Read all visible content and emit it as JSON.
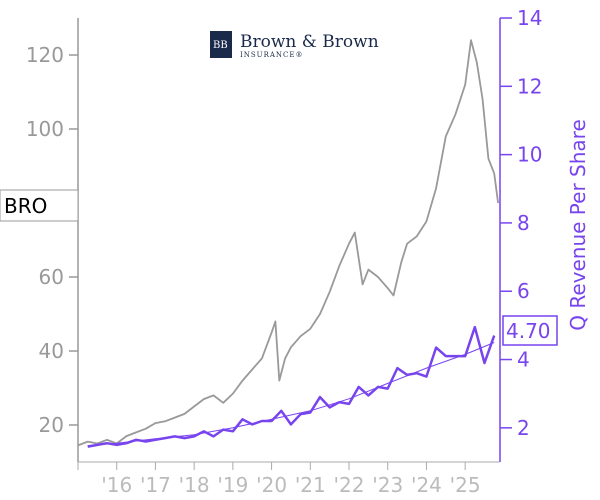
{
  "logo": {
    "main": "Brown & Brown",
    "sub": "INSURANCE®",
    "mark": "BB"
  },
  "ticker": "BRO",
  "last_value_label": "4.70",
  "colors": {
    "price": "#999999",
    "revenue": "#7744ee",
    "trend": "#7744ee",
    "left_axis": "#999999",
    "right_axis": "#7744ee"
  },
  "chart_data": {
    "type": "line",
    "x_tick_labels": [
      "'16",
      "'17",
      "'18",
      "'19",
      "'20",
      "'21",
      "'22",
      "'23",
      "'24",
      "'25"
    ],
    "x_tick_years": [
      2016,
      2017,
      2018,
      2019,
      2020,
      2021,
      2022,
      2023,
      2024,
      2025
    ],
    "xlim": [
      2015.0,
      2025.9
    ],
    "left_axis": {
      "ticks": [
        20,
        40,
        60,
        100,
        120
      ],
      "ylim": [
        10,
        130
      ]
    },
    "right_axis": {
      "label": "Q Revenue Per Share",
      "ticks": [
        2,
        4,
        6,
        8,
        10,
        12,
        14
      ],
      "ylim": [
        1,
        14
      ]
    },
    "series": [
      {
        "axis": "left",
        "values": [
          [
            2015.0,
            14.5
          ],
          [
            2015.25,
            15.5
          ],
          [
            2015.5,
            15.0
          ],
          [
            2015.75,
            16.0
          ],
          [
            2016.0,
            15.0
          ],
          [
            2016.25,
            17.0
          ],
          [
            2016.5,
            18.0
          ],
          [
            2016.75,
            19.0
          ],
          [
            2017.0,
            20.5
          ],
          [
            2017.25,
            21.0
          ],
          [
            2017.5,
            22.0
          ],
          [
            2017.75,
            23.0
          ],
          [
            2018.0,
            25.0
          ],
          [
            2018.25,
            27.0
          ],
          [
            2018.5,
            28.0
          ],
          [
            2018.75,
            26.0
          ],
          [
            2019.0,
            28.5
          ],
          [
            2019.25,
            32.0
          ],
          [
            2019.5,
            35.0
          ],
          [
            2019.75,
            38.0
          ],
          [
            2020.0,
            45.0
          ],
          [
            2020.1,
            48.0
          ],
          [
            2020.2,
            32.0
          ],
          [
            2020.35,
            38.0
          ],
          [
            2020.5,
            41.0
          ],
          [
            2020.75,
            44.0
          ],
          [
            2021.0,
            46.0
          ],
          [
            2021.25,
            50.0
          ],
          [
            2021.5,
            56.0
          ],
          [
            2021.75,
            63.0
          ],
          [
            2022.0,
            69.0
          ],
          [
            2022.15,
            72.0
          ],
          [
            2022.35,
            58.0
          ],
          [
            2022.5,
            62.0
          ],
          [
            2022.75,
            60.0
          ],
          [
            2023.0,
            57.0
          ],
          [
            2023.15,
            55.0
          ],
          [
            2023.35,
            64.0
          ],
          [
            2023.5,
            69.0
          ],
          [
            2023.75,
            71.0
          ],
          [
            2024.0,
            75.0
          ],
          [
            2024.25,
            84.0
          ],
          [
            2024.5,
            98.0
          ],
          [
            2024.75,
            104.0
          ],
          [
            2025.0,
            112.0
          ],
          [
            2025.15,
            124.0
          ],
          [
            2025.3,
            118.0
          ],
          [
            2025.45,
            108.0
          ],
          [
            2025.6,
            92.0
          ],
          [
            2025.75,
            88.0
          ],
          [
            2025.85,
            80.0
          ]
        ]
      },
      {
        "axis": "right",
        "values": [
          [
            2015.25,
            1.45
          ],
          [
            2015.5,
            1.5
          ],
          [
            2015.75,
            1.55
          ],
          [
            2016.0,
            1.5
          ],
          [
            2016.25,
            1.55
          ],
          [
            2016.5,
            1.65
          ],
          [
            2016.75,
            1.6
          ],
          [
            2017.0,
            1.65
          ],
          [
            2017.25,
            1.7
          ],
          [
            2017.5,
            1.75
          ],
          [
            2017.75,
            1.7
          ],
          [
            2018.0,
            1.75
          ],
          [
            2018.25,
            1.9
          ],
          [
            2018.5,
            1.75
          ],
          [
            2018.75,
            1.95
          ],
          [
            2019.0,
            1.9
          ],
          [
            2019.25,
            2.25
          ],
          [
            2019.5,
            2.1
          ],
          [
            2019.75,
            2.2
          ],
          [
            2020.0,
            2.2
          ],
          [
            2020.25,
            2.5
          ],
          [
            2020.5,
            2.1
          ],
          [
            2020.75,
            2.4
          ],
          [
            2021.0,
            2.45
          ],
          [
            2021.25,
            2.9
          ],
          [
            2021.5,
            2.6
          ],
          [
            2021.75,
            2.75
          ],
          [
            2022.0,
            2.7
          ],
          [
            2022.25,
            3.2
          ],
          [
            2022.5,
            2.95
          ],
          [
            2022.75,
            3.2
          ],
          [
            2023.0,
            3.15
          ],
          [
            2023.25,
            3.75
          ],
          [
            2023.5,
            3.55
          ],
          [
            2023.75,
            3.6
          ],
          [
            2024.0,
            3.5
          ],
          [
            2024.25,
            4.35
          ],
          [
            2024.5,
            4.1
          ],
          [
            2024.75,
            4.1
          ],
          [
            2025.0,
            4.1
          ],
          [
            2025.25,
            4.95
          ],
          [
            2025.5,
            3.9
          ],
          [
            2025.75,
            4.7
          ]
        ]
      },
      {
        "axis": "right",
        "values": [
          [
            2015.25,
            1.48
          ],
          [
            2016.0,
            1.55
          ],
          [
            2017.0,
            1.68
          ],
          [
            2018.0,
            1.8
          ],
          [
            2019.0,
            2.0
          ],
          [
            2020.0,
            2.25
          ],
          [
            2021.0,
            2.5
          ],
          [
            2022.0,
            2.85
          ],
          [
            2023.0,
            3.3
          ],
          [
            2024.0,
            3.75
          ],
          [
            2025.0,
            4.15
          ],
          [
            2025.75,
            4.5
          ]
        ]
      }
    ]
  }
}
